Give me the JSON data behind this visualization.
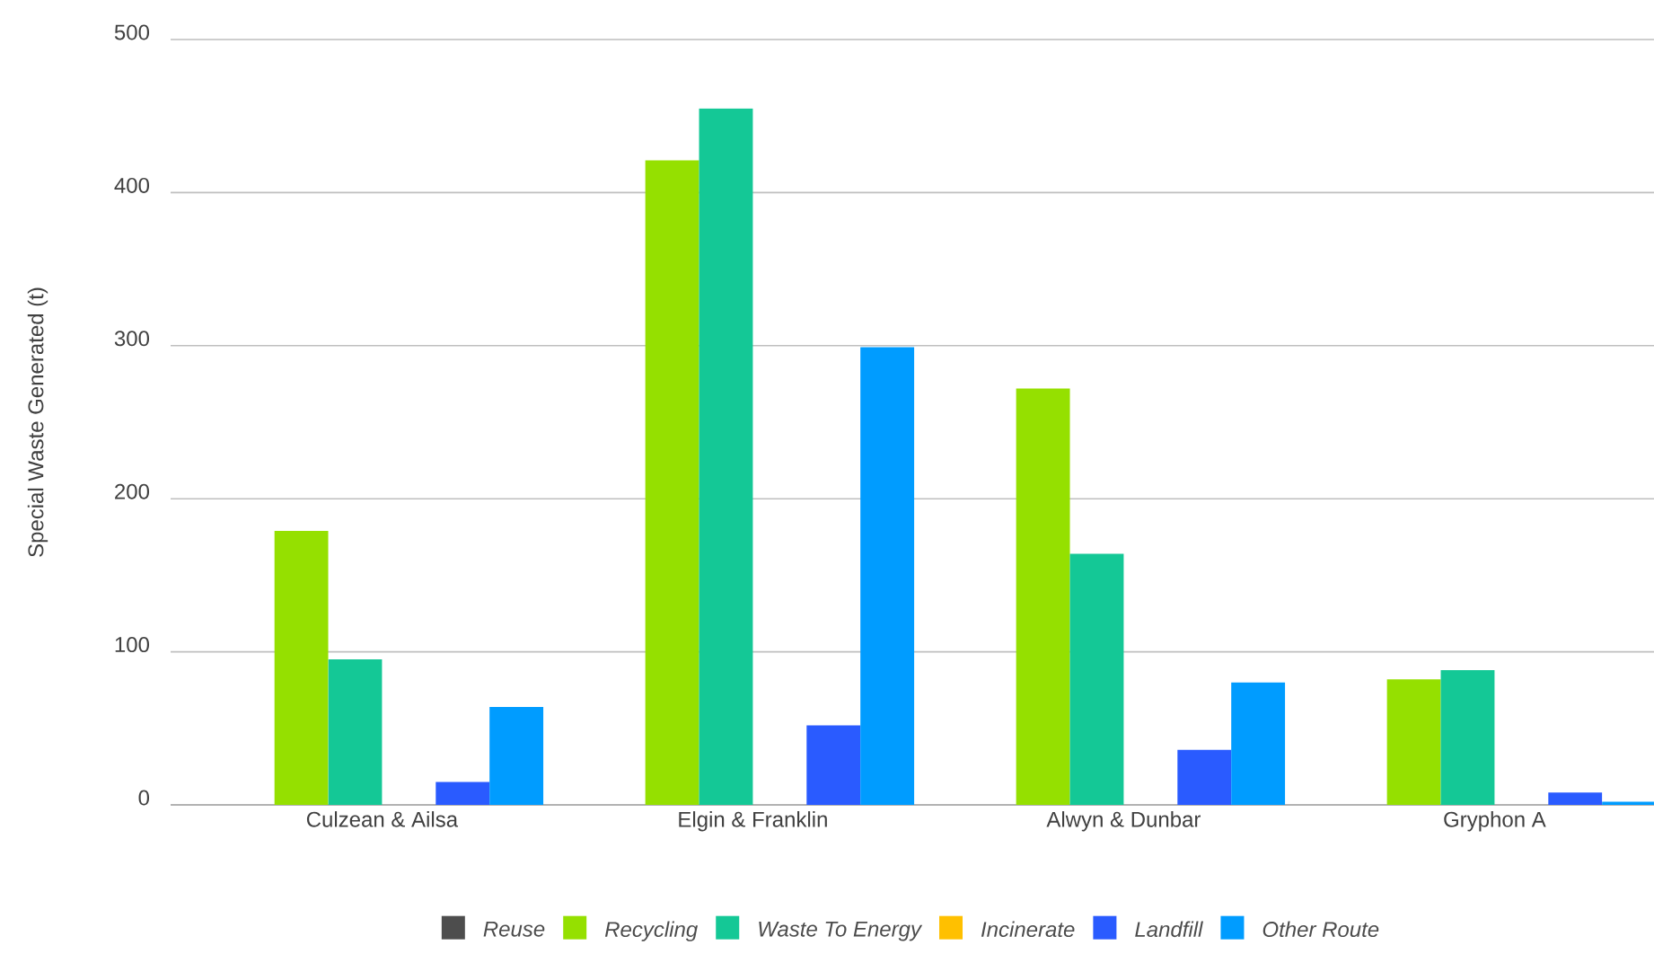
{
  "chart_data": {
    "type": "bar",
    "ylabel": "Special Waste Generated (t)",
    "categories": [
      "Culzean & Ailsa",
      "Elgin & Franklin",
      "Alwyn & Dunbar",
      "Gryphon A"
    ],
    "series": [
      {
        "name": "Reuse",
        "color": "#4d4d4d",
        "values": [
          0,
          0,
          0,
          0
        ]
      },
      {
        "name": "Recycling",
        "color": "#95e000",
        "values": [
          179,
          421,
          272,
          82
        ]
      },
      {
        "name": "Waste To Energy",
        "color": "#14c896",
        "values": [
          95,
          455,
          164,
          88
        ]
      },
      {
        "name": "Incinerate",
        "color": "#ffc000",
        "values": [
          0,
          0,
          0,
          0
        ]
      },
      {
        "name": "Landfill",
        "color": "#2a5bff",
        "values": [
          15,
          52,
          36,
          8
        ]
      },
      {
        "name": "Other Route",
        "color": "#009cff",
        "values": [
          64,
          299,
          80,
          2
        ]
      }
    ],
    "ylim": [
      0,
      500
    ],
    "yticks": [
      0,
      100,
      200,
      300,
      400,
      500
    ],
    "grid": "y",
    "legend": "bottom"
  }
}
